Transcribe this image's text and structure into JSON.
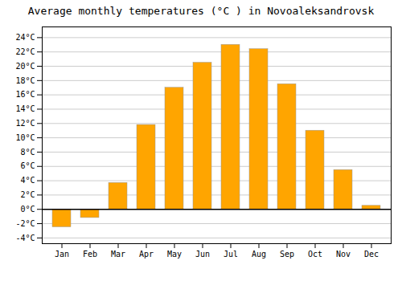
{
  "chart_data": {
    "type": "bar",
    "title": "Average monthly temperatures (°C ) in Novoaleksandrovsk",
    "categories": [
      "Jan",
      "Feb",
      "Mar",
      "Apr",
      "May",
      "Jun",
      "Jul",
      "Aug",
      "Sep",
      "Oct",
      "Nov",
      "Dec"
    ],
    "values": [
      -2.5,
      -1.2,
      3.7,
      11.8,
      17.0,
      20.5,
      23.0,
      22.4,
      17.5,
      11.0,
      5.5,
      0.5
    ],
    "color": "#FFA500",
    "ylim": [
      -4.8,
      25.5
    ],
    "yticks": [
      {
        "value": -4,
        "label": "-4°C"
      },
      {
        "value": -2,
        "label": "-2°C"
      },
      {
        "value": 0,
        "label": "0°C"
      },
      {
        "value": 2,
        "label": "2°C"
      },
      {
        "value": 4,
        "label": "4°C"
      },
      {
        "value": 6,
        "label": "6°C"
      },
      {
        "value": 8,
        "label": "8°C"
      },
      {
        "value": 10,
        "label": "10°C"
      },
      {
        "value": 12,
        "label": "12°C"
      },
      {
        "value": 14,
        "label": "14°C"
      },
      {
        "value": 16,
        "label": "16°C"
      },
      {
        "value": 18,
        "label": "18°C"
      },
      {
        "value": 20,
        "label": "20°C"
      },
      {
        "value": 22,
        "label": "22°C"
      },
      {
        "value": 24,
        "label": "24°C"
      }
    ],
    "grid": true
  }
}
